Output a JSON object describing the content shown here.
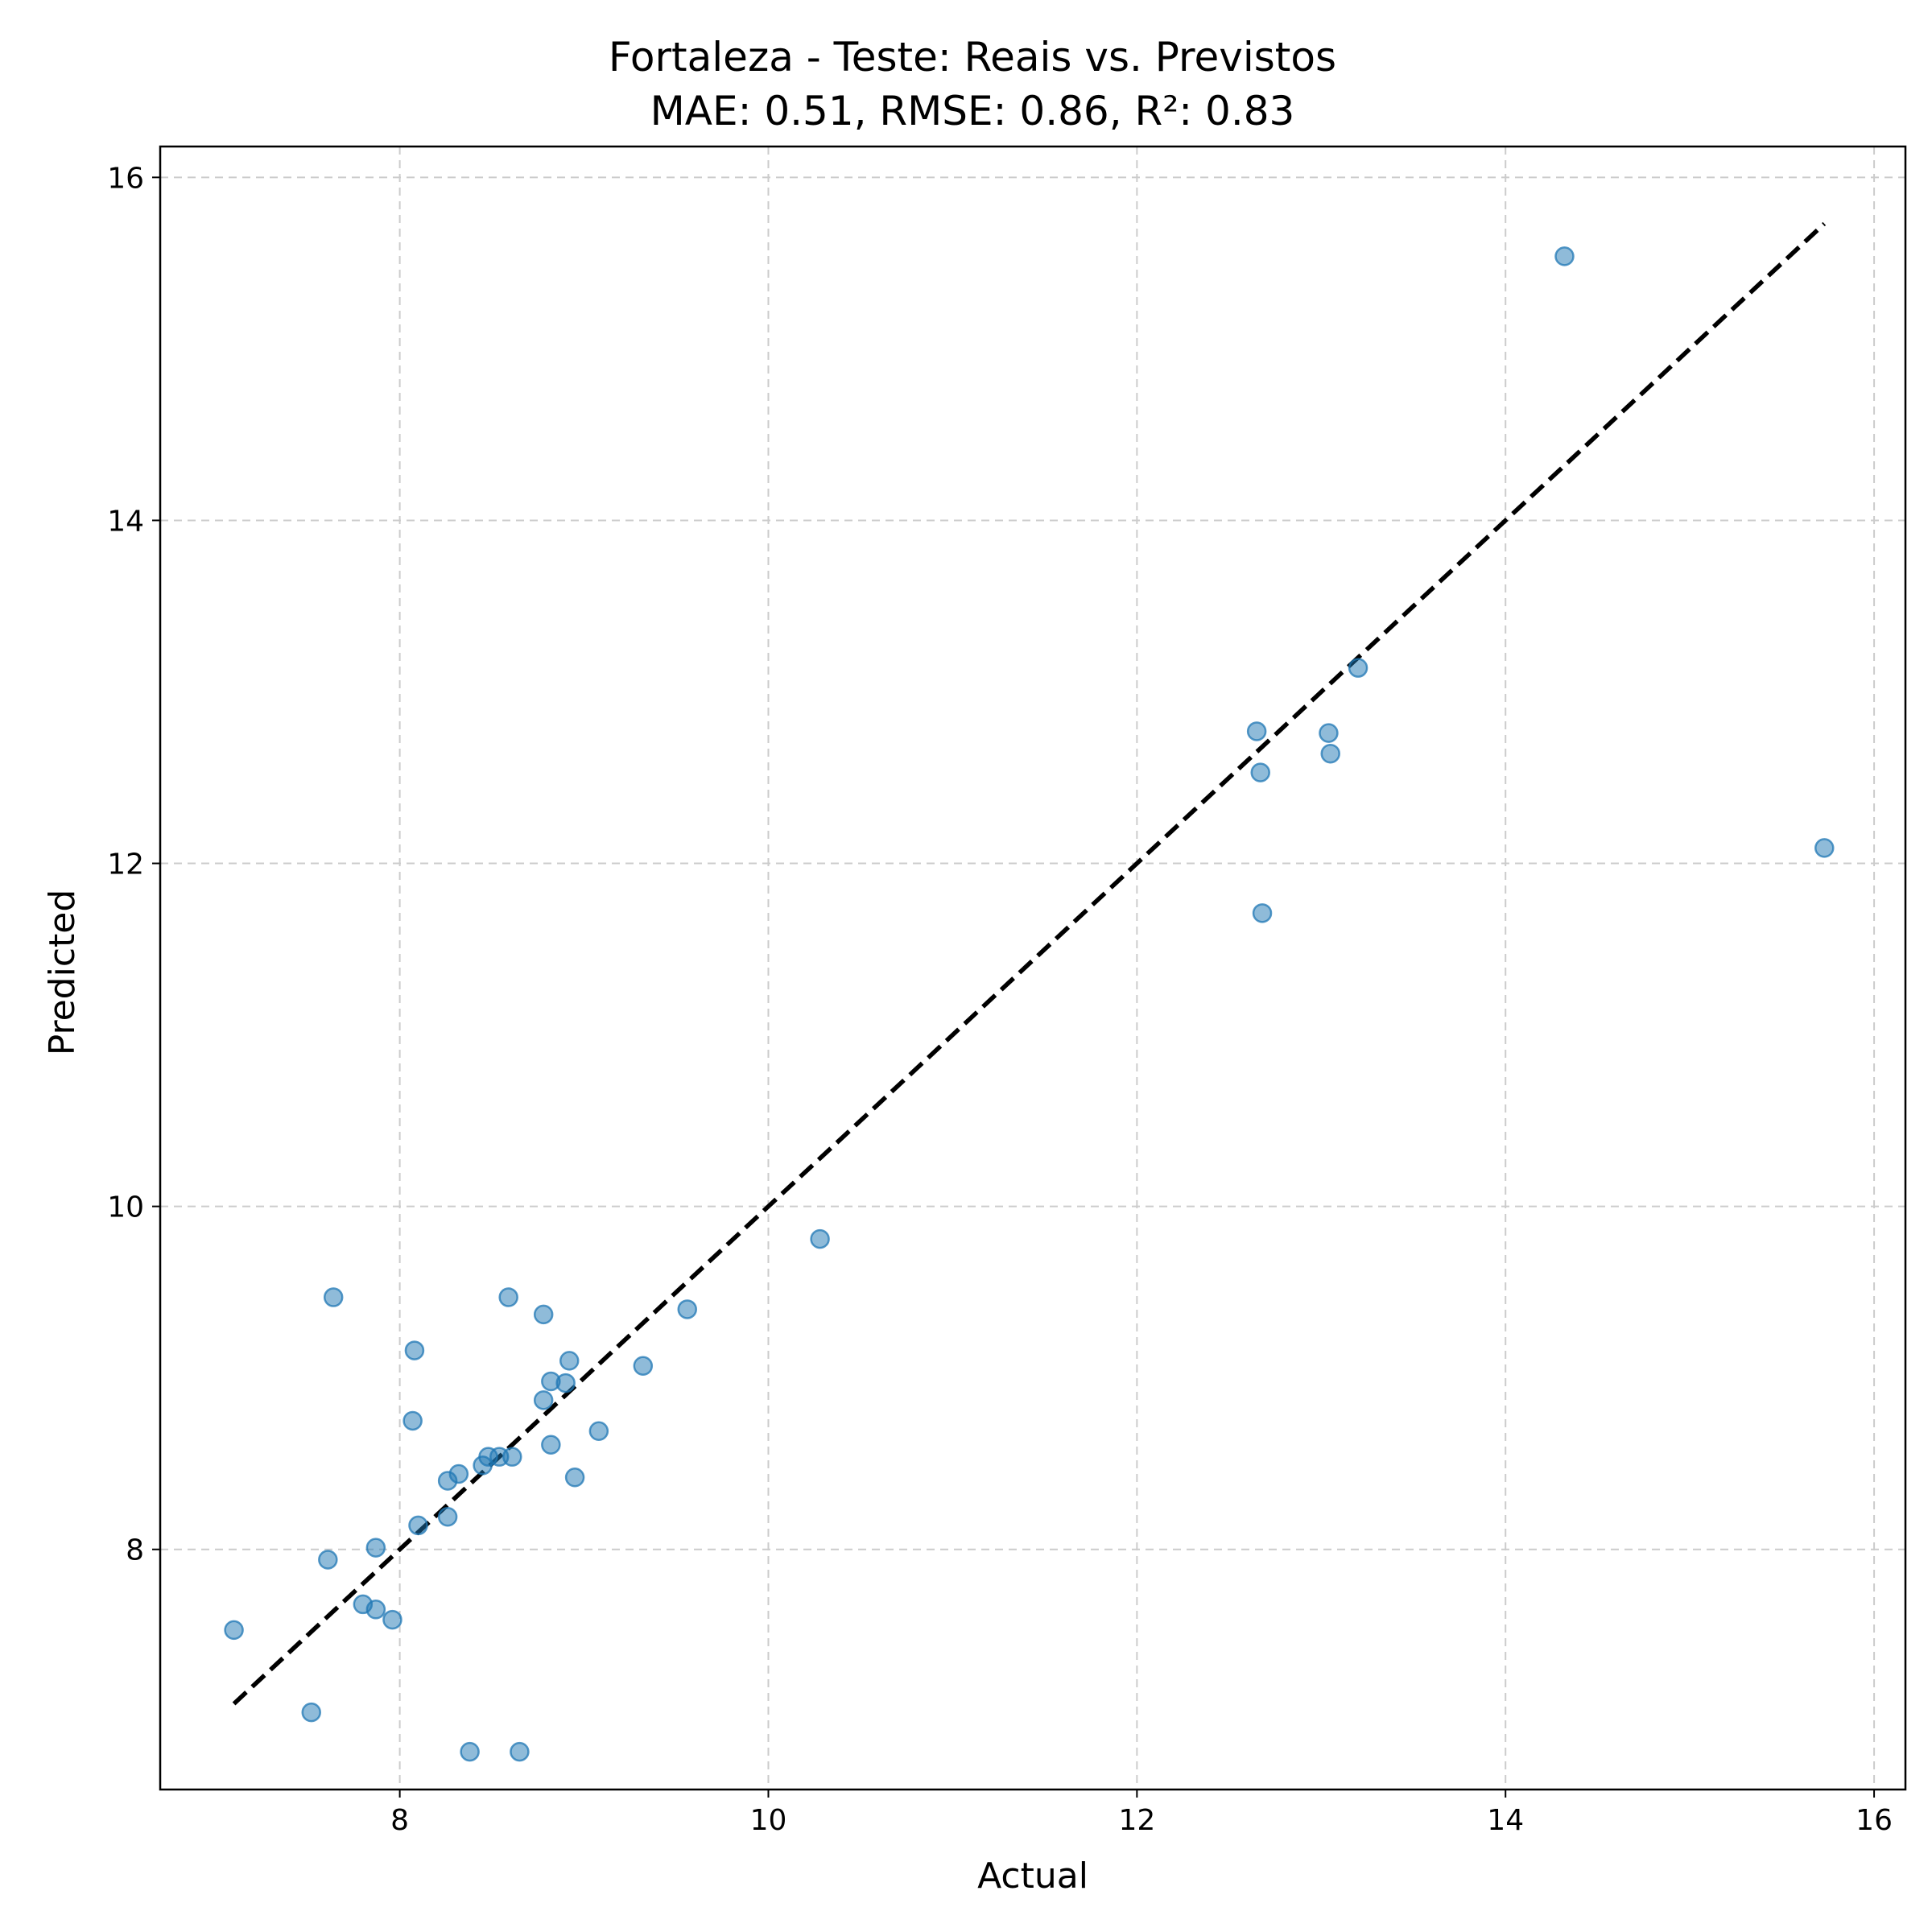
{
  "chart_data": {
    "type": "scatter",
    "title": "Fortaleza - Teste: Reais vs. Previstos",
    "subtitle": "MAE: 0.51, RMSE: 0.86, R²: 0.83",
    "xlabel": "Actual",
    "ylabel": "Predicted",
    "xlim": [
      6.7,
      16.17
    ],
    "ylim": [
      6.6,
      16.18
    ],
    "xticks": [
      8,
      10,
      12,
      14,
      16
    ],
    "yticks": [
      8,
      10,
      12,
      14,
      16
    ],
    "grid": true,
    "point_color": "#1f77b4",
    "point_alpha": 0.5,
    "reference_line": {
      "style": "dashed",
      "color": "#000000",
      "from": [
        7.1,
        7.1
      ],
      "to": [
        15.73,
        15.73
      ]
    },
    "points": [
      {
        "x": 7.1,
        "y": 7.53
      },
      {
        "x": 7.52,
        "y": 7.05
      },
      {
        "x": 7.61,
        "y": 7.94
      },
      {
        "x": 7.64,
        "y": 9.47
      },
      {
        "x": 7.8,
        "y": 7.68
      },
      {
        "x": 7.87,
        "y": 7.65
      },
      {
        "x": 7.87,
        "y": 8.01
      },
      {
        "x": 7.96,
        "y": 7.59
      },
      {
        "x": 8.07,
        "y": 8.75
      },
      {
        "x": 8.08,
        "y": 9.16
      },
      {
        "x": 8.1,
        "y": 8.14
      },
      {
        "x": 8.26,
        "y": 8.19
      },
      {
        "x": 8.26,
        "y": 8.4
      },
      {
        "x": 8.32,
        "y": 8.44
      },
      {
        "x": 8.38,
        "y": 6.82
      },
      {
        "x": 8.45,
        "y": 8.49
      },
      {
        "x": 8.48,
        "y": 8.54
      },
      {
        "x": 8.54,
        "y": 8.54
      },
      {
        "x": 8.59,
        "y": 9.47
      },
      {
        "x": 8.61,
        "y": 8.54
      },
      {
        "x": 8.65,
        "y": 6.82
      },
      {
        "x": 8.78,
        "y": 9.37
      },
      {
        "x": 8.78,
        "y": 8.87
      },
      {
        "x": 8.82,
        "y": 8.98
      },
      {
        "x": 8.82,
        "y": 8.61
      },
      {
        "x": 8.9,
        "y": 8.97
      },
      {
        "x": 8.92,
        "y": 9.1
      },
      {
        "x": 8.95,
        "y": 8.42
      },
      {
        "x": 9.08,
        "y": 8.69
      },
      {
        "x": 9.32,
        "y": 9.07
      },
      {
        "x": 9.56,
        "y": 9.4
      },
      {
        "x": 10.28,
        "y": 9.81
      },
      {
        "x": 12.65,
        "y": 12.77
      },
      {
        "x": 12.67,
        "y": 12.53
      },
      {
        "x": 12.68,
        "y": 11.71
      },
      {
        "x": 13.04,
        "y": 12.76
      },
      {
        "x": 13.05,
        "y": 12.64
      },
      {
        "x": 13.2,
        "y": 13.14
      },
      {
        "x": 14.32,
        "y": 15.54
      },
      {
        "x": 15.73,
        "y": 12.09
      }
    ]
  }
}
